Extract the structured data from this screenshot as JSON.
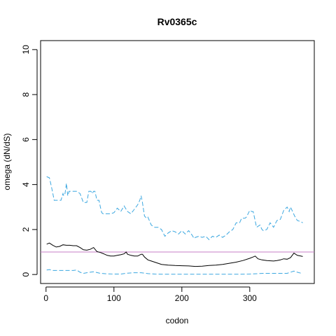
{
  "chart_data": {
    "type": "line",
    "title": "Rv0365c",
    "xlabel": "codon",
    "ylabel": "omega (dN/dS)",
    "xlim": [
      -8,
      395
    ],
    "ylim": [
      -0.4,
      10.4
    ],
    "xticks": [
      0,
      100,
      200,
      300
    ],
    "yticks": [
      0,
      2,
      4,
      6,
      8,
      10
    ],
    "grid": false,
    "reference_line": {
      "y": 1.0,
      "color": "#C77CC7"
    },
    "series": [
      {
        "role": "upper",
        "color": "#3BA7E0",
        "dash": "6,3",
        "x": [
          1,
          5,
          8,
          10,
          12,
          15,
          18,
          22,
          25,
          26,
          28,
          30,
          32,
          34,
          36,
          40,
          45,
          50,
          55,
          58,
          60,
          63,
          66,
          68,
          70,
          72,
          75,
          78,
          80,
          82,
          84,
          86,
          90,
          95,
          100,
          105,
          110,
          115,
          118,
          120,
          125,
          130,
          135,
          138,
          140,
          142,
          145,
          148,
          150,
          155,
          160,
          165,
          170,
          175,
          180,
          185,
          190,
          195,
          200,
          205,
          210,
          215,
          218,
          220,
          225,
          230,
          235,
          240,
          245,
          250,
          255,
          260,
          265,
          270,
          275,
          280,
          285,
          288,
          290,
          293,
          295,
          300,
          303,
          305,
          310,
          315,
          318,
          320,
          325,
          330,
          335,
          340,
          345,
          350,
          355,
          358,
          360,
          363,
          366,
          370,
          375,
          378
        ],
        "y": [
          4.35,
          4.3,
          3.9,
          3.6,
          3.3,
          3.3,
          3.3,
          3.3,
          3.6,
          3.5,
          3.6,
          4.05,
          3.5,
          3.7,
          3.7,
          3.7,
          3.7,
          3.6,
          3.2,
          3.2,
          3.2,
          3.7,
          3.7,
          3.6,
          3.7,
          3.7,
          3.3,
          3.3,
          3.0,
          2.75,
          2.7,
          2.7,
          2.7,
          2.7,
          2.75,
          2.95,
          2.8,
          3.05,
          2.9,
          2.8,
          2.7,
          2.9,
          3.1,
          3.3,
          3.5,
          3.2,
          2.6,
          2.5,
          2.55,
          2.2,
          2.1,
          2.1,
          2.0,
          1.7,
          1.85,
          1.95,
          1.9,
          1.8,
          1.95,
          1.8,
          1.95,
          1.75,
          1.6,
          1.65,
          1.7,
          1.65,
          1.7,
          1.55,
          1.7,
          1.65,
          1.75,
          1.65,
          1.75,
          1.9,
          2.0,
          2.3,
          2.3,
          2.5,
          2.5,
          2.5,
          2.55,
          2.85,
          2.8,
          2.8,
          2.1,
          2.2,
          2.0,
          1.95,
          2.0,
          2.3,
          2.1,
          2.4,
          2.45,
          2.85,
          3.0,
          2.8,
          3.0,
          2.8,
          2.6,
          2.4,
          2.35,
          2.3
        ]
      },
      {
        "role": "estimate",
        "color": "#000000",
        "dash": "",
        "x": [
          1,
          5,
          10,
          15,
          20,
          25,
          30,
          35,
          40,
          45,
          50,
          55,
          60,
          65,
          70,
          75,
          80,
          85,
          90,
          95,
          100,
          105,
          110,
          115,
          118,
          120,
          125,
          130,
          135,
          140,
          142,
          145,
          150,
          155,
          160,
          170,
          180,
          190,
          200,
          210,
          220,
          230,
          240,
          250,
          260,
          270,
          280,
          290,
          300,
          305,
          308,
          312,
          318,
          325,
          335,
          340,
          345,
          350,
          355,
          360,
          365,
          370,
          375,
          378
        ],
        "y": [
          1.35,
          1.4,
          1.3,
          1.22,
          1.25,
          1.32,
          1.3,
          1.3,
          1.28,
          1.28,
          1.2,
          1.1,
          1.08,
          1.12,
          1.2,
          1.02,
          0.98,
          0.92,
          0.85,
          0.82,
          0.82,
          0.85,
          0.88,
          0.92,
          1.0,
          0.9,
          0.85,
          0.82,
          0.82,
          0.9,
          0.9,
          0.78,
          0.65,
          0.6,
          0.55,
          0.45,
          0.42,
          0.4,
          0.39,
          0.38,
          0.36,
          0.37,
          0.4,
          0.42,
          0.45,
          0.5,
          0.55,
          0.62,
          0.72,
          0.78,
          0.82,
          0.7,
          0.65,
          0.62,
          0.6,
          0.62,
          0.65,
          0.7,
          0.68,
          0.75,
          0.95,
          0.85,
          0.82,
          0.8
        ]
      },
      {
        "role": "lower",
        "color": "#3BA7E0",
        "dash": "6,3",
        "x": [
          1,
          5,
          10,
          15,
          20,
          25,
          30,
          35,
          40,
          45,
          50,
          55,
          60,
          65,
          70,
          80,
          90,
          100,
          110,
          120,
          130,
          140,
          150,
          160,
          170,
          180,
          200,
          220,
          240,
          260,
          280,
          300,
          320,
          340,
          355,
          360,
          365,
          370,
          375,
          378
        ],
        "y": [
          0.2,
          0.22,
          0.18,
          0.18,
          0.18,
          0.18,
          0.18,
          0.18,
          0.18,
          0.2,
          0.1,
          0.05,
          0.08,
          0.1,
          0.12,
          0.05,
          0.03,
          0.02,
          0.02,
          0.06,
          0.08,
          0.08,
          0.04,
          0.02,
          0.01,
          0.01,
          0.01,
          0.01,
          0.01,
          0.01,
          0.01,
          0.02,
          0.05,
          0.05,
          0.05,
          0.1,
          0.15,
          0.1,
          0.06,
          0.05
        ]
      }
    ]
  }
}
